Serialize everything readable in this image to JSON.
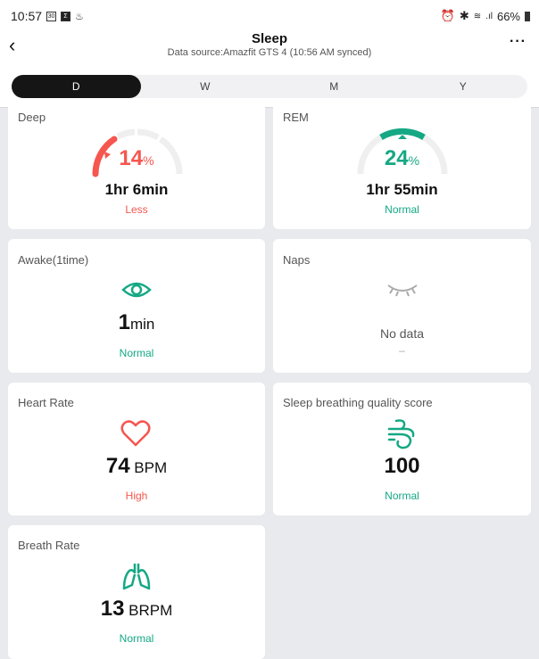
{
  "status_bar": {
    "time": "10:57",
    "icon1": "30",
    "icon2": "Σ",
    "battery": "66%"
  },
  "header": {
    "title": "Sleep",
    "subtitle": "Data source:Amazfit GTS 4 (10:56 AM synced)"
  },
  "tabs": [
    {
      "label": "D",
      "active": true
    },
    {
      "label": "W"
    },
    {
      "label": "M"
    },
    {
      "label": "Y"
    }
  ],
  "colors": {
    "red": "#f5564e",
    "green": "#15a884"
  },
  "cards": {
    "deep": {
      "title": "Deep",
      "percent": "14",
      "pct": "%",
      "duration": "1hr 6min",
      "status": "Less"
    },
    "rem": {
      "title": "REM",
      "percent": "24",
      "pct": "%",
      "duration": "1hr 55min",
      "status": "Normal"
    },
    "awake": {
      "title": "Awake(1time)",
      "value": "1",
      "unit": "min",
      "status": "Normal"
    },
    "naps": {
      "title": "Naps",
      "value": "No data",
      "status": "–"
    },
    "heart": {
      "title": "Heart Rate",
      "value": "74",
      "unit": " BPM",
      "status": "High"
    },
    "breathing": {
      "title": "Sleep breathing quality score",
      "value": "100",
      "status": "Normal"
    },
    "breath_rate": {
      "title": "Breath Rate",
      "value": "13",
      "unit": " BRPM",
      "status": "Normal"
    }
  }
}
